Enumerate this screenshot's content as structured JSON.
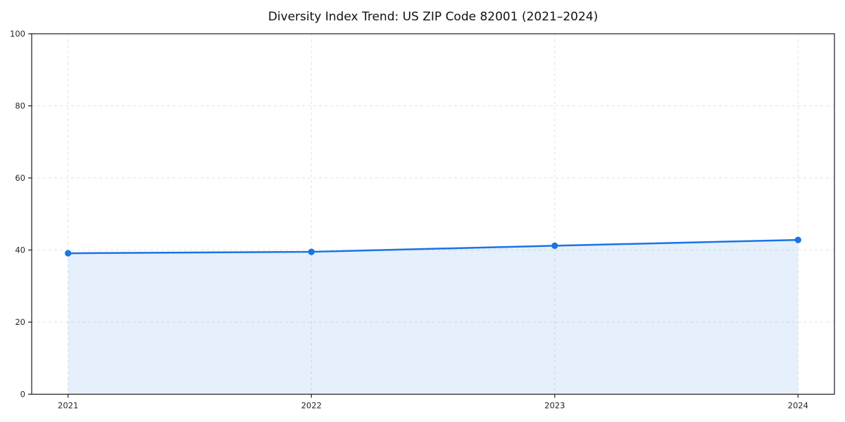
{
  "chart_data": {
    "type": "area",
    "title": "Diversity Index Trend: US ZIP Code 82001 (2021–2024)",
    "x": [
      "2021",
      "2022",
      "2023",
      "2024"
    ],
    "series": [
      {
        "name": "Diversity Index",
        "values": [
          39.1,
          39.5,
          41.2,
          42.8
        ]
      }
    ],
    "xlabel": "",
    "ylabel": "",
    "ylim": [
      0,
      100
    ],
    "yticks": [
      0,
      20,
      40,
      60,
      80,
      100
    ],
    "grid": true,
    "grid_style": "dashed",
    "legend": false,
    "marker": "circle",
    "colors": {
      "line": "#1a73e8",
      "fill": "rgba(26,115,232,0.11)",
      "grid": "#e2e2e2",
      "spine": "#1c1c1c",
      "tick_label": "#262626",
      "background": "#ffffff"
    }
  }
}
